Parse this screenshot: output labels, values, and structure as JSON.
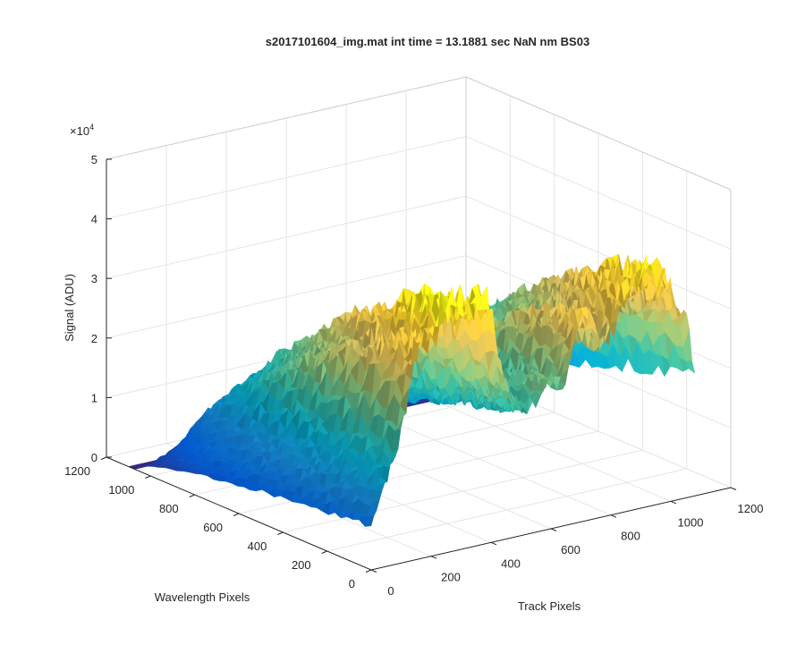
{
  "chart_data": {
    "type": "surface3d",
    "title": "s2017101604_img.mat int time = 13.1881 sec  NaN nm BS03",
    "xlabel": "Track Pixels",
    "ylabel": "Wavelength Pixels",
    "zlabel": "Signal (ADU)",
    "z_exponent_label": "×10",
    "z_exponent_power": "4",
    "xlim": [
      0,
      1200
    ],
    "ylim": [
      0,
      1200
    ],
    "zlim": [
      0,
      50000
    ],
    "x_ticks": [
      "0",
      "200",
      "400",
      "600",
      "800",
      "1000",
      "1200"
    ],
    "y_ticks": [
      "0",
      "200",
      "400",
      "600",
      "800",
      "1000",
      "1200"
    ],
    "z_ticks": [
      "0",
      "1",
      "2",
      "3",
      "4",
      "5"
    ],
    "grid": true,
    "colormap": [
      "#352a87",
      "#0363e1",
      "#1485d4",
      "#06a7c6",
      "#38b99e",
      "#92bf73",
      "#d9ba56",
      "#fcce2e",
      "#f9fb0e"
    ],
    "ridges": [
      {
        "track_center": 50,
        "peak_signal": 12000
      },
      {
        "track_center": 160,
        "peak_signal": 32000
      },
      {
        "track_center": 270,
        "peak_signal": 38000
      },
      {
        "track_center": 380,
        "peak_signal": 37000
      },
      {
        "track_center": 490,
        "peak_signal": 18000
      },
      {
        "track_center": 600,
        "peak_signal": 22000
      },
      {
        "track_center": 720,
        "peak_signal": 33000
      },
      {
        "track_center": 840,
        "peak_signal": 30000
      },
      {
        "track_center": 940,
        "peak_signal": 34000
      },
      {
        "track_center": 1040,
        "peak_signal": 28000
      }
    ]
  }
}
